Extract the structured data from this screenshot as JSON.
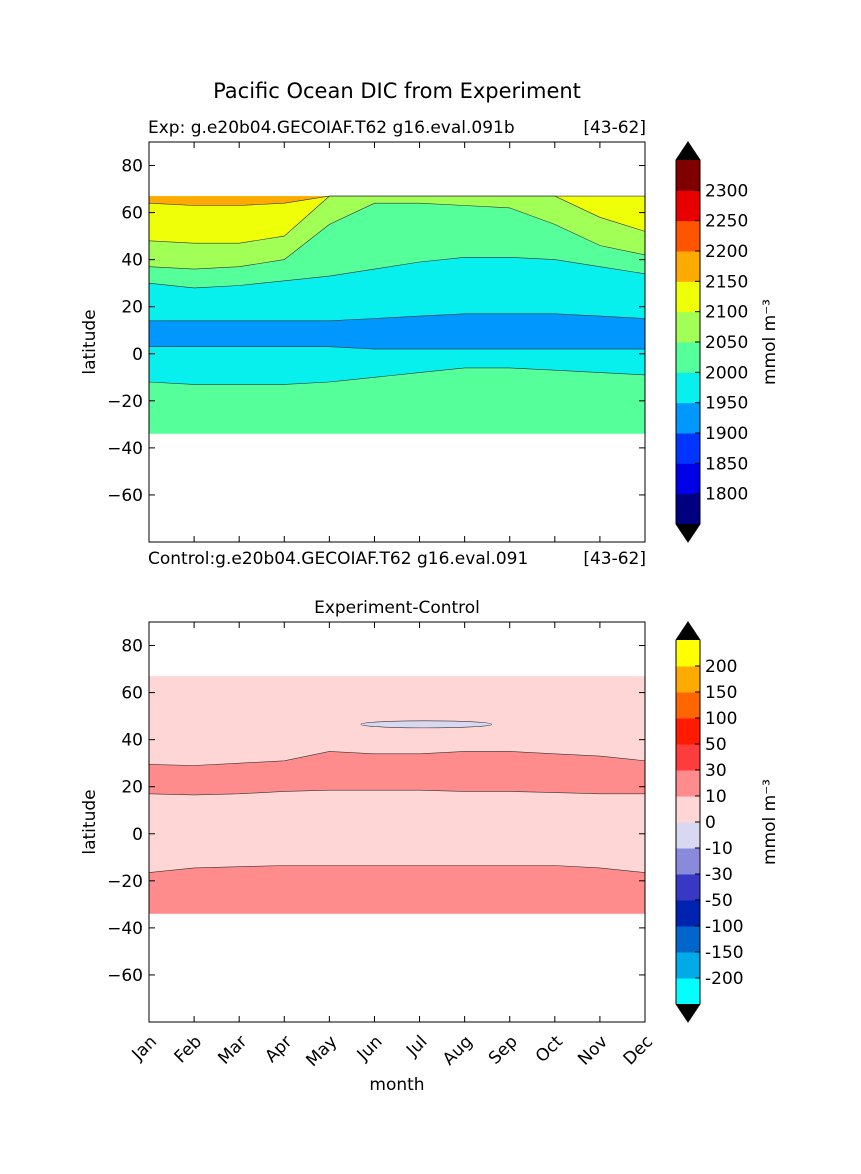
{
  "figure": {
    "title": "Pacific Ocean DIC from Experiment"
  },
  "chart_data": [
    {
      "type": "contourf",
      "name": "experiment-panel",
      "title": "",
      "left_label": "Exp:    g.e20b04.GECOIAF.T62 g16.eval.091b",
      "right_label": "[43-62]",
      "xlabel": "",
      "ylabel": "latitude",
      "xlim": [
        0,
        11
      ],
      "ylim": [
        -80,
        90
      ],
      "yticks": [
        -60,
        -40,
        -20,
        0,
        20,
        40,
        60,
        80
      ],
      "x_tick_labels": [],
      "data_extent_lat": [
        -34,
        67
      ],
      "grid": false,
      "colorbar": {
        "label": "mmol m⁻³",
        "levels": [
          1750,
          1800,
          1850,
          1900,
          1950,
          2000,
          2050,
          2100,
          2150,
          2200,
          2250,
          2300,
          2350
        ],
        "tick_labels": [
          "1800",
          "1850",
          "1900",
          "1950",
          "2000",
          "2050",
          "2100",
          "2150",
          "2200",
          "2250",
          "2300"
        ],
        "colors": [
          "#000080",
          "#0000e8",
          "#0034ff",
          "#0098ff",
          "#08f0ee",
          "#55ff99",
          "#a2ff55",
          "#eeff08",
          "#ffaa00",
          "#ff5500",
          "#e80000",
          "#800000"
        ],
        "extend": "both",
        "extend_color": "#000000"
      },
      "regions": [
        {
          "level": "2000-2050",
          "color": "#55ff99",
          "upper": [
            67,
            67,
            67,
            67,
            67,
            67,
            67,
            67,
            67,
            67,
            67,
            67
          ],
          "lower": [
            -34,
            -34,
            -34,
            -34,
            -34,
            -34,
            -34,
            -34,
            -34,
            -34,
            -34,
            -34
          ]
        },
        {
          "level": "1950-2000",
          "color": "#08f0ee",
          "upper": [
            30,
            28,
            29,
            31,
            33,
            36,
            39,
            41,
            41,
            40,
            37,
            34
          ],
          "lower": [
            -12,
            -13,
            -13,
            -13,
            -12,
            -10,
            -8,
            -6,
            -6,
            -7,
            -8,
            -9
          ]
        },
        {
          "level": "1900-1950",
          "color": "#0098ff",
          "upper": [
            14,
            14,
            14,
            14,
            14,
            15,
            16,
            17,
            17,
            17,
            16,
            15
          ],
          "lower": [
            3,
            3,
            3,
            3,
            3,
            2,
            2,
            2,
            2,
            2,
            2,
            2
          ]
        },
        {
          "level": "2050-2100",
          "color": "#a2ff55",
          "upper": [
            67,
            67,
            67,
            67,
            67,
            67,
            67,
            67,
            67,
            67,
            67,
            67
          ],
          "lower": [
            37,
            36,
            37,
            40,
            55,
            64,
            64,
            63,
            62,
            55,
            46,
            42
          ]
        },
        {
          "level": "2100-2150",
          "color": "#eeff08",
          "upper": [
            67,
            67,
            67,
            67,
            67,
            67,
            67,
            67,
            67,
            67,
            67,
            67
          ],
          "lower": [
            48,
            47,
            47,
            50,
            67,
            67,
            67,
            67,
            67,
            67,
            58,
            52
          ]
        },
        {
          "level": "2150-2200",
          "color": "#ffaa00",
          "upper": [
            67,
            67,
            67,
            67,
            67,
            67,
            67,
            67,
            67,
            67,
            67,
            67
          ],
          "lower": [
            64,
            63,
            63,
            64,
            67,
            67,
            67,
            67,
            67,
            67,
            67,
            67
          ]
        }
      ]
    },
    {
      "type": "contourf",
      "name": "difference-panel",
      "title": "Experiment-Control",
      "left_label": "Control:g.e20b04.GECOIAF.T62 g16.eval.091",
      "right_label": "[43-62]",
      "xlabel": "month",
      "ylabel": "latitude",
      "xlim": [
        0,
        11
      ],
      "ylim": [
        -80,
        90
      ],
      "yticks": [
        -60,
        -40,
        -20,
        0,
        20,
        40,
        60,
        80
      ],
      "x_tick_labels": [
        "Jan",
        "Feb",
        "Mar",
        "Apr",
        "May",
        "Jun",
        "Jul",
        "Aug",
        "Sep",
        "Oct",
        "Nov",
        "Dec"
      ],
      "data_extent_lat": [
        -34,
        67
      ],
      "grid": false,
      "colorbar": {
        "label": "mmol m⁻³",
        "levels": [
          -250,
          -200,
          -150,
          -100,
          -50,
          -30,
          -10,
          0,
          10,
          30,
          50,
          100,
          150,
          200,
          250
        ],
        "tick_labels": [
          "-200",
          "-150",
          "-100",
          "-50",
          "-30",
          "-10",
          "0",
          "10",
          "30",
          "50",
          "100",
          "150",
          "200"
        ],
        "colors": [
          "#00ffff",
          "#00aae8",
          "#0066cc",
          "#0022b0",
          "#3838c4",
          "#8a8adc",
          "#d8d8f2",
          "#ffd6d6",
          "#ff8c8c",
          "#ff3d3d",
          "#ff1a00",
          "#ff6600",
          "#ffaa00",
          "#ffff00"
        ],
        "extend": "both",
        "extend_color": "#000000"
      },
      "regions": [
        {
          "level": "0-10",
          "color": "#ffd6d6",
          "upper": [
            67,
            67,
            67,
            67,
            67,
            67,
            67,
            67,
            67,
            67,
            67,
            67
          ],
          "lower": [
            -34,
            -34,
            -34,
            -34,
            -34,
            -34,
            -34,
            -34,
            -34,
            -34,
            -34,
            -34
          ]
        },
        {
          "level": "10-30",
          "color": "#ff8c8c",
          "upper": [
            29.5,
            29,
            30,
            31,
            35,
            34,
            34,
            35,
            35,
            34,
            33,
            31
          ],
          "lower": [
            17,
            16.5,
            17,
            18,
            18.5,
            18.5,
            18.5,
            18,
            18,
            17.5,
            17,
            17
          ]
        },
        {
          "level": "10-30",
          "color": "#ff8c8c",
          "upper": [
            -16.5,
            -14.5,
            -14,
            -13.5,
            -13.5,
            -13.5,
            -13.5,
            -13.5,
            -13.5,
            -13.5,
            -14.5,
            -16.5
          ],
          "lower": [
            -34,
            -34,
            -34,
            -34,
            -34,
            -34,
            -34,
            -34,
            -34,
            -34,
            -34,
            -34
          ]
        }
      ],
      "features": [
        {
          "level": "-10-0",
          "color": "#d8d8f2",
          "x_range": [
            4.7,
            7.6
          ],
          "lat_center": 46.5,
          "lat_halfwidth": 1.5
        }
      ]
    }
  ]
}
